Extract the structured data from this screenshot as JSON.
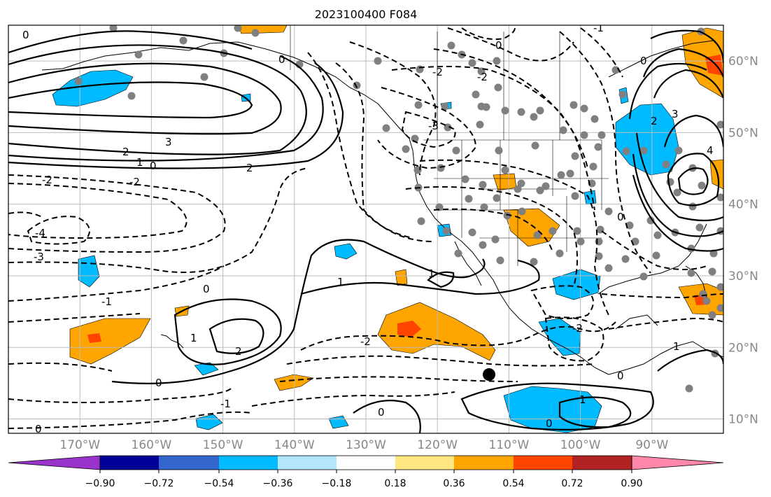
{
  "title": "2023100400 F084",
  "lon_ticks": [
    {
      "value": -170,
      "label": "170°W"
    },
    {
      "value": -160,
      "label": "160°W"
    },
    {
      "value": -150,
      "label": "150°W"
    },
    {
      "value": -140,
      "label": "140°W"
    },
    {
      "value": -130,
      "label": "130°W"
    },
    {
      "value": -120,
      "label": "120°W"
    },
    {
      "value": -110,
      "label": "110°W"
    },
    {
      "value": -100,
      "label": "100°W"
    },
    {
      "value": -90,
      "label": "90°W"
    }
  ],
  "lat_ticks": [
    {
      "value": 60,
      "label": "60°N"
    },
    {
      "value": 50,
      "label": "50°N"
    },
    {
      "value": 40,
      "label": "40°N"
    },
    {
      "value": 30,
      "label": "30°N"
    },
    {
      "value": 20,
      "label": "20°N"
    },
    {
      "value": 10,
      "label": "10°N"
    }
  ],
  "map_extent": {
    "lon_min": -180,
    "lon_max": -80,
    "lat_min": 8,
    "lat_max": 65
  },
  "colorbar": {
    "colors": [
      "#9933cc",
      "#000099",
      "#3366cc",
      "#00bbff",
      "#b3e5fc",
      "#ffffff",
      "#ffe680",
      "#ffa500",
      "#ff4400",
      "#b22222",
      "#ff88aa"
    ],
    "tick_labels": [
      "−0.90",
      "−0.72",
      "−0.54",
      "−0.36",
      "−0.18",
      "0.18",
      "0.36",
      "0.54",
      "0.72",
      "0.90"
    ]
  },
  "shading_colors": {
    "orange": "#ffa500",
    "red": "#ff4400",
    "blue": "#00bbff",
    "lightblue": "#b3e5fc"
  },
  "contour_labels": [
    "0",
    "-1",
    "-2",
    "-3",
    "-4",
    "1",
    "2",
    "3",
    "4"
  ],
  "marker_dot_color": "#808080"
}
